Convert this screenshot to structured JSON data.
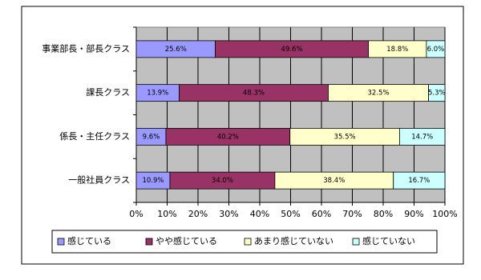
{
  "chart_data": {
    "type": "stacked-bar-horizontal",
    "categories": [
      "事業部長・部長クラス",
      "課長クラス",
      "係長・主任クラス",
      "一般社員クラス"
    ],
    "series": [
      {
        "name": "感じている",
        "color": "#9999ff",
        "values": [
          25.6,
          13.9,
          9.6,
          10.9
        ],
        "value_labels": [
          "25.6%",
          "13.9%",
          "9.6%",
          "10.9%"
        ]
      },
      {
        "name": "やや感じている",
        "color": "#993366",
        "values": [
          49.6,
          48.3,
          40.2,
          34.0
        ],
        "value_labels": [
          "49.6%",
          "48.3%",
          "40.2%",
          "34.0%"
        ]
      },
      {
        "name": "あまり感じていない",
        "color": "#ffffcc",
        "values": [
          18.8,
          32.5,
          35.5,
          38.4
        ],
        "value_labels": [
          "18.8%",
          "32.5%",
          "35.5%",
          "38.4%"
        ]
      },
      {
        "name": "感じていない",
        "color": "#ccffff",
        "values": [
          6.0,
          5.3,
          14.7,
          16.7
        ],
        "value_labels": [
          "6.0%",
          "5.3%",
          "14.7%",
          "16.7%"
        ]
      }
    ],
    "xlim": [
      0,
      100
    ],
    "xticks": [
      {
        "value": 0,
        "label": "0%"
      },
      {
        "value": 10,
        "label": "10%"
      },
      {
        "value": 20,
        "label": "20%"
      },
      {
        "value": 30,
        "label": "30%"
      },
      {
        "value": 40,
        "label": "40%"
      },
      {
        "value": 50,
        "label": "50%"
      },
      {
        "value": 60,
        "label": "60%"
      },
      {
        "value": 70,
        "label": "70%"
      },
      {
        "value": 80,
        "label": "80%"
      },
      {
        "value": 90,
        "label": "90%"
      },
      {
        "value": 100,
        "label": "100%"
      }
    ],
    "grid": true,
    "legend": "bottom"
  }
}
